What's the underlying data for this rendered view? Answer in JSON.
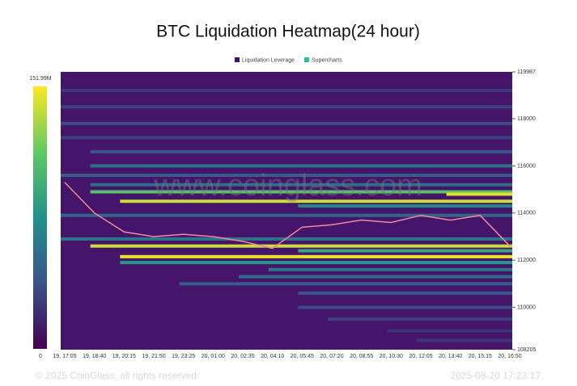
{
  "chart_data": {
    "type": "heatmap",
    "title": "BTC Liquidation Heatmap(24 hour)",
    "legend": [
      {
        "name": "Liquidation Leverage",
        "color": "#46106a"
      },
      {
        "name": "Supercharts",
        "color": "#22c78a"
      }
    ],
    "watermark": "www.coinglass.com",
    "footer_left": "© 2025 CoinGlass. all rights reserved",
    "footer_right": "2025-08-20 17:23:17",
    "categories": [
      "19, 17:05",
      "19, 18:40",
      "19, 20:15",
      "19, 21:50",
      "19, 23:25",
      "20, 01:00",
      "20, 02:35",
      "20, 04:10",
      "20, 05:45",
      "20, 07:20",
      "20, 08:55",
      "20, 10:30",
      "20, 12:05",
      "20, 13:40",
      "20, 15:15",
      "20, 16:50"
    ],
    "ylim": [
      108205,
      119987
    ],
    "yticks": [
      108205,
      110000,
      112000,
      114000,
      116000,
      118000,
      119987
    ],
    "colorlim": [
      0,
      151.99
    ],
    "colorticks": [
      0,
      {
        "value": 151.99,
        "label": "151.99M"
      }
    ],
    "colorscale": [
      "#440154",
      "#3b528b",
      "#21918c",
      "#5ec962",
      "#fde725"
    ],
    "background": "#45156b",
    "bands": [
      {
        "price": 119200,
        "start": "19, 17:05",
        "value": 25
      },
      {
        "price": 118500,
        "start": "19, 17:05",
        "value": 30
      },
      {
        "price": 117800,
        "start": "19, 17:05",
        "value": 35
      },
      {
        "price": 117200,
        "start": "19, 17:05",
        "value": 30
      },
      {
        "price": 116600,
        "start": "19, 18:40",
        "value": 40
      },
      {
        "price": 116000,
        "start": "19, 18:40",
        "value": 60
      },
      {
        "price": 115600,
        "start": "19, 17:05",
        "value": 45
      },
      {
        "price": 115200,
        "start": "19, 18:40",
        "value": 55
      },
      {
        "price": 114900,
        "start": "19, 18:40",
        "value": 110
      },
      {
        "price": 114800,
        "start": "20, 13:40",
        "value": 145
      },
      {
        "price": 114500,
        "start": "19, 20:15",
        "value": 140
      },
      {
        "price": 114300,
        "start": "20, 05:45",
        "value": 70
      },
      {
        "price": 113900,
        "start": "19, 17:05",
        "value": 50
      },
      {
        "price": 112900,
        "start": "19, 17:05",
        "value": 60
      },
      {
        "price": 112600,
        "start": "19, 18:40",
        "value": 140
      },
      {
        "price": 112400,
        "start": "20, 05:45",
        "value": 90
      },
      {
        "price": 112150,
        "start": "19, 20:15",
        "value": 148
      },
      {
        "price": 111900,
        "start": "19, 20:15",
        "value": 80
      },
      {
        "price": 111600,
        "start": "20, 04:10",
        "value": 60
      },
      {
        "price": 111300,
        "start": "20, 02:35",
        "value": 55
      },
      {
        "price": 111000,
        "start": "19, 23:25",
        "value": 45
      },
      {
        "price": 110600,
        "start": "20, 05:45",
        "value": 40
      },
      {
        "price": 110000,
        "start": "20, 05:45",
        "value": 35
      },
      {
        "price": 109500,
        "start": "20, 07:20",
        "value": 30
      },
      {
        "price": 109000,
        "start": "20, 10:30",
        "value": 25
      },
      {
        "price": 108600,
        "start": "20, 12:05",
        "value": 25
      }
    ],
    "price": {
      "color": "#f08a9a",
      "values": [
        115300,
        114000,
        113200,
        113000,
        113100,
        113000,
        112800,
        112500,
        113400,
        113500,
        113700,
        113600,
        113900,
        113700,
        113900,
        112600
      ]
    }
  }
}
